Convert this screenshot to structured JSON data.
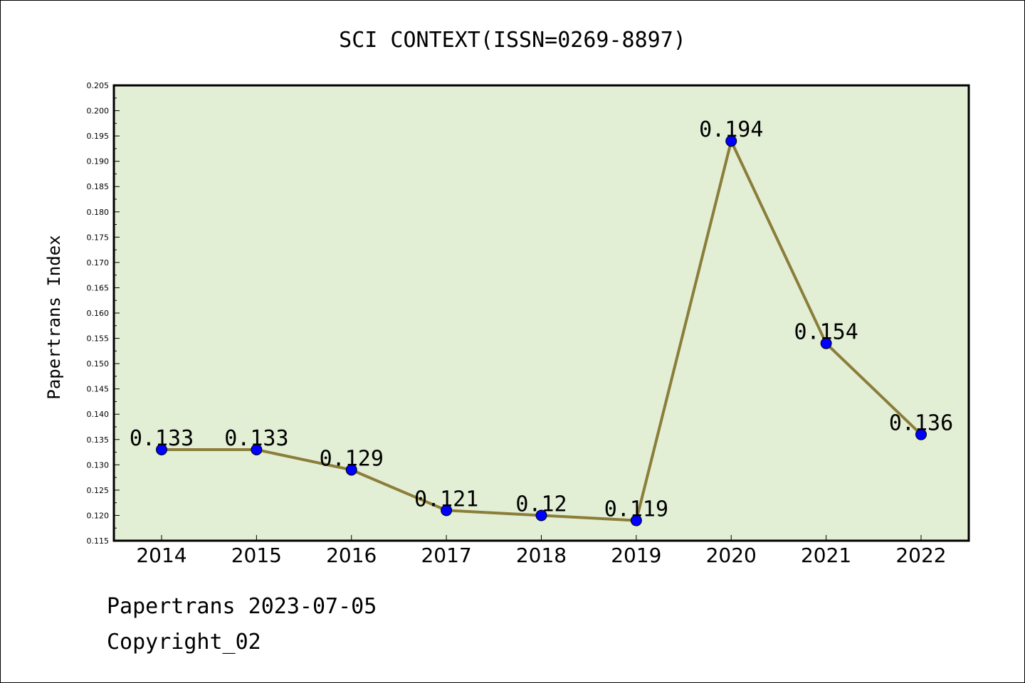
{
  "chart_data": {
    "type": "line",
    "title": "SCI CONTEXT(ISSN=0269-8897)",
    "xlabel": "",
    "ylabel": "Papertrans Index",
    "categories": [
      "2014",
      "2015",
      "2016",
      "2017",
      "2018",
      "2019",
      "2020",
      "2021",
      "2022"
    ],
    "values": [
      0.133,
      0.133,
      0.129,
      0.121,
      0.12,
      0.119,
      0.194,
      0.154,
      0.136
    ],
    "data_labels": [
      "0.133",
      "0.133",
      "0.129",
      "0.121",
      "0.12",
      "0.119",
      "0.194",
      "0.154",
      "0.136"
    ],
    "ylim": [
      0.115,
      0.205
    ],
    "yticks": [
      "0.115",
      "0.120",
      "0.125",
      "0.130",
      "0.135",
      "0.140",
      "0.145",
      "0.150",
      "0.155",
      "0.160",
      "0.165",
      "0.170",
      "0.175",
      "0.180",
      "0.185",
      "0.190",
      "0.195",
      "0.200",
      "0.205"
    ],
    "grid": false,
    "legend": "none",
    "colors": {
      "plot_background": "#e2efd5",
      "line": "#8b7d3a",
      "marker": "#0000ff"
    }
  },
  "footer": {
    "line1": "Papertrans 2023-07-05",
    "line2": "Copyright_02"
  }
}
